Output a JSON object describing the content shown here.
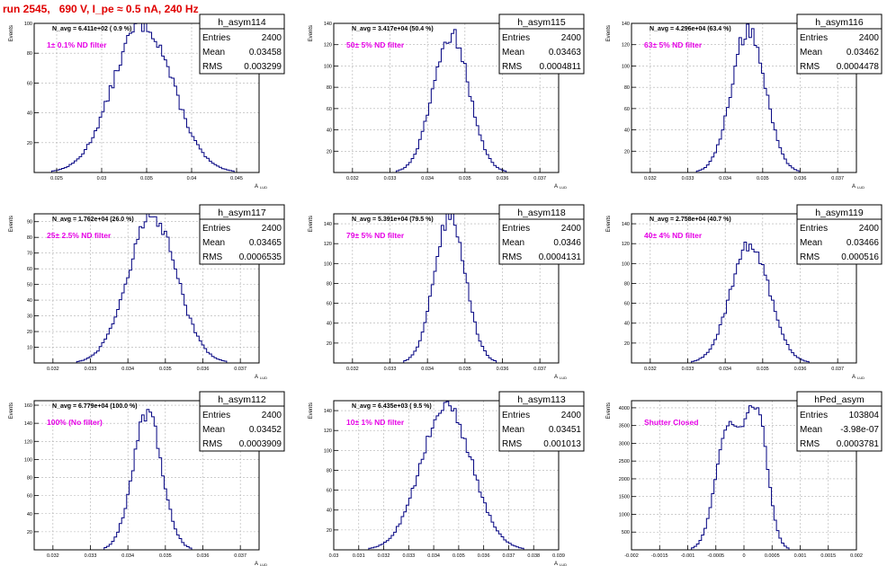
{
  "run_title": "run 2545,   690 V, I_pe ≈ 0.5 nA, 240 Hz",
  "colors": {
    "title": "#e00000",
    "annotation": "#e600e6",
    "histogram": "#000080",
    "grid": "#b0b0b0"
  },
  "chart_data": [
    {
      "type": "histogram",
      "title": "h_asym114",
      "stats": {
        "Entries": "2400",
        "Mean": "0.03458",
        "RMS": "0.003299"
      },
      "header": "N_avg = 6.411e+02 ( 0.9 %)",
      "annotation": "1± 0.1% ND filter",
      "ylabel": "Events",
      "xlabel": "A_LUD",
      "xlim": [
        0.0225,
        0.0475
      ],
      "ylim": [
        0,
        100
      ],
      "xticks": [
        0.025,
        0.03,
        0.035,
        0.04,
        0.045
      ],
      "xticklabels": [
        "0.025",
        "0.03",
        "0.035",
        "0.04",
        "0.045"
      ],
      "yticks": [
        20,
        40,
        60,
        80,
        100
      ],
      "mean": 0.03458,
      "rms": 0.003299,
      "peak": 100
    },
    {
      "type": "histogram",
      "title": "h_asym115",
      "stats": {
        "Entries": "2400",
        "Mean": "0.03463",
        "RMS": "0.0004811"
      },
      "header": "N_avg = 3.417e+04 (50.4 %)",
      "annotation": "50± 5% ND filter",
      "ylabel": "Events",
      "xlabel": "A_LUD",
      "xlim": [
        0.0315,
        0.0375
      ],
      "ylim": [
        0,
        140
      ],
      "xticks": [
        0.032,
        0.033,
        0.034,
        0.035,
        0.036,
        0.037
      ],
      "xticklabels": [
        "0.032",
        "0.033",
        "0.034",
        "0.035",
        "0.036",
        "0.037"
      ],
      "yticks": [
        20,
        40,
        60,
        80,
        100,
        120,
        140
      ],
      "mean": 0.03463,
      "rms": 0.0004811,
      "peak": 130
    },
    {
      "type": "histogram",
      "title": "h_asym116",
      "stats": {
        "Entries": "2400",
        "Mean": "0.03462",
        "RMS": "0.0004478"
      },
      "header": "N_avg = 4.296e+04 (63.4 %)",
      "annotation": "63± 5% ND filter",
      "ylabel": "Events",
      "xlabel": "A_LUD",
      "xlim": [
        0.0315,
        0.0375
      ],
      "ylim": [
        0,
        140
      ],
      "xticks": [
        0.032,
        0.033,
        0.034,
        0.035,
        0.036,
        0.037
      ],
      "xticklabels": [
        "0.032",
        "0.033",
        "0.034",
        "0.035",
        "0.036",
        "0.037"
      ],
      "yticks": [
        20,
        40,
        60,
        80,
        100,
        120,
        140
      ],
      "mean": 0.03462,
      "rms": 0.0004478,
      "peak": 135
    },
    {
      "type": "histogram",
      "title": "h_asym117",
      "stats": {
        "Entries": "2400",
        "Mean": "0.03465",
        "RMS": "0.0006535"
      },
      "header": "N_avg = 1.762e+04 (26.0 %)",
      "annotation": "25± 2.5% ND filter",
      "ylabel": "Events",
      "xlabel": "A_LUD",
      "xlim": [
        0.0315,
        0.0375
      ],
      "ylim": [
        0,
        95
      ],
      "xticks": [
        0.032,
        0.033,
        0.034,
        0.035,
        0.036,
        0.037
      ],
      "xticklabels": [
        "0.032",
        "0.033",
        "0.034",
        "0.035",
        "0.036",
        "0.037"
      ],
      "yticks": [
        10,
        20,
        30,
        40,
        50,
        60,
        70,
        80,
        90
      ],
      "mean": 0.03465,
      "rms": 0.0006535,
      "peak": 93
    },
    {
      "type": "histogram",
      "title": "h_asym118",
      "stats": {
        "Entries": "2400",
        "Mean": "0.0346",
        "RMS": "0.0004131"
      },
      "header": "N_avg = 5.391e+04 (79.5 %)",
      "annotation": "79± 5% ND filter",
      "ylabel": "Events",
      "xlabel": "A_LUD",
      "xlim": [
        0.0315,
        0.0375
      ],
      "ylim": [
        0,
        150
      ],
      "xticks": [
        0.032,
        0.033,
        0.034,
        0.035,
        0.036,
        0.037
      ],
      "xticklabels": [
        "0.032",
        "0.033",
        "0.034",
        "0.035",
        "0.036",
        "0.037"
      ],
      "yticks": [
        20,
        40,
        60,
        80,
        100,
        120,
        140
      ],
      "mean": 0.0346,
      "rms": 0.0004131,
      "peak": 148
    },
    {
      "type": "histogram",
      "title": "h_asym119",
      "stats": {
        "Entries": "2400",
        "Mean": "0.03466",
        "RMS": "0.000516"
      },
      "header": "N_avg = 2.758e+04 (40.7 %)",
      "annotation": "40± 4% ND filter",
      "ylabel": "Events",
      "xlabel": "A_LUD",
      "xlim": [
        0.0315,
        0.0375
      ],
      "ylim": [
        0,
        150
      ],
      "xticks": [
        0.032,
        0.033,
        0.034,
        0.035,
        0.036,
        0.037
      ],
      "xticklabels": [
        "0.032",
        "0.033",
        "0.034",
        "0.035",
        "0.036",
        "0.037"
      ],
      "yticks": [
        20,
        40,
        60,
        80,
        100,
        120,
        140
      ],
      "mean": 0.03466,
      "rms": 0.000516,
      "peak": 120
    },
    {
      "type": "histogram",
      "title": "h_asym112",
      "stats": {
        "Entries": "2400",
        "Mean": "0.03452",
        "RMS": "0.0003909"
      },
      "header": "N_avg = 6.779e+04 (100.0 %)",
      "annotation": "100% (No filter)",
      "ylabel": "Events",
      "xlabel": "A_LUD",
      "xlim": [
        0.0315,
        0.0375
      ],
      "ylim": [
        0,
        165
      ],
      "xticks": [
        0.032,
        0.033,
        0.034,
        0.035,
        0.036,
        0.037
      ],
      "xticklabels": [
        "0.032",
        "0.033",
        "0.034",
        "0.035",
        "0.036",
        "0.037"
      ],
      "yticks": [
        20,
        40,
        60,
        80,
        100,
        120,
        140,
        160
      ],
      "mean": 0.03452,
      "rms": 0.0003909,
      "peak": 150
    },
    {
      "type": "histogram",
      "title": "h_asym113",
      "stats": {
        "Entries": "2400",
        "Mean": "0.03451",
        "RMS": "0.001013"
      },
      "header": "N_avg = 6.435e+03 ( 9.5 %)",
      "annotation": "10± 1% ND filter",
      "ylabel": "Events",
      "xlabel": "A_LUD",
      "xlim": [
        0.03,
        0.039
      ],
      "ylim": [
        0,
        150
      ],
      "xticks": [
        0.03,
        0.031,
        0.032,
        0.033,
        0.034,
        0.035,
        0.036,
        0.037,
        0.038,
        0.039
      ],
      "xticklabels": [
        "0.03",
        "0.031",
        "0.032",
        "0.033",
        "0.034",
        "0.035",
        "0.036",
        "0.037",
        "0.038",
        "0.039"
      ],
      "yticks": [
        20,
        40,
        60,
        80,
        100,
        120,
        140
      ],
      "mean": 0.03451,
      "rms": 0.001013,
      "peak": 145
    },
    {
      "type": "histogram",
      "title": "hPed_asym",
      "stats": {
        "Entries": "103804",
        "Mean": "-3.98e-07",
        "RMS": "0.0003781"
      },
      "header": "",
      "annotation": "Shutter Closed",
      "ylabel": "Events",
      "xlabel": "",
      "xlim": [
        -0.002,
        0.002
      ],
      "ylim": [
        0,
        4200
      ],
      "xticks": [
        -0.002,
        -0.0015,
        -0.001,
        -0.0005,
        0,
        0.0005,
        0.001,
        0.0015,
        0.002
      ],
      "xticklabels": [
        "-0.002",
        "-0.0015",
        "-0.001",
        "-0.0005",
        "0",
        "0.0005",
        "0.001",
        "0.0015",
        "0.002"
      ],
      "yticks": [
        500,
        1000,
        1500,
        2000,
        2500,
        3000,
        3500,
        4000
      ],
      "mean": -3.98e-07,
      "rms": 0.0003781,
      "peak": 4000
    }
  ]
}
